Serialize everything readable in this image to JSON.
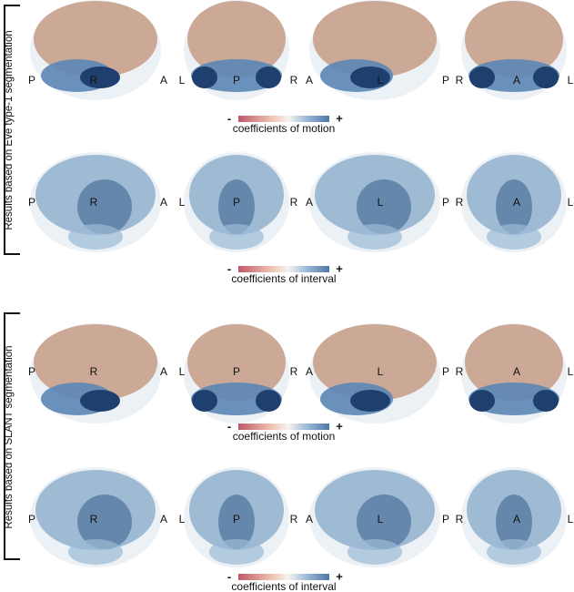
{
  "side_labels": [
    "Results based on Eve type-1 segmentation",
    "Results based on SLANT segmentation"
  ],
  "rows": [
    {
      "labels": [
        "P",
        "R",
        "A",
        "L",
        "P",
        "R",
        "A",
        "L",
        "P",
        "R",
        "A",
        "L"
      ],
      "colorbar": {
        "minus": "-",
        "plus": "+",
        "label": "coefficients of motion"
      },
      "style": "motion"
    },
    {
      "labels": [
        "P",
        "R",
        "A",
        "L",
        "P",
        "R",
        "A",
        "L",
        "P",
        "R",
        "A",
        "L"
      ],
      "colorbar": {
        "minus": "-",
        "plus": "+",
        "label": "coefficients of interval"
      },
      "style": "interval"
    },
    {
      "labels": [
        "P",
        "R",
        "A",
        "L",
        "P",
        "R",
        "A",
        "L",
        "P",
        "R",
        "A",
        "L"
      ],
      "colorbar": {
        "minus": "-",
        "plus": "+",
        "label": "coefficients of motion"
      },
      "style": "motion"
    },
    {
      "labels": [
        "P",
        "R",
        "A",
        "L",
        "P",
        "R",
        "A",
        "L",
        "P",
        "R",
        "A",
        "L"
      ],
      "colorbar": {
        "minus": "-",
        "plus": "+",
        "label": "coefficients of interval"
      },
      "style": "interval"
    }
  ],
  "colors": {
    "negative": "#c0586a",
    "neutral": "#f6f3f0",
    "positive": "#4f77a6",
    "cortex_motion": "#c79b85",
    "cerebellum_dark": "#1f3f6e"
  }
}
